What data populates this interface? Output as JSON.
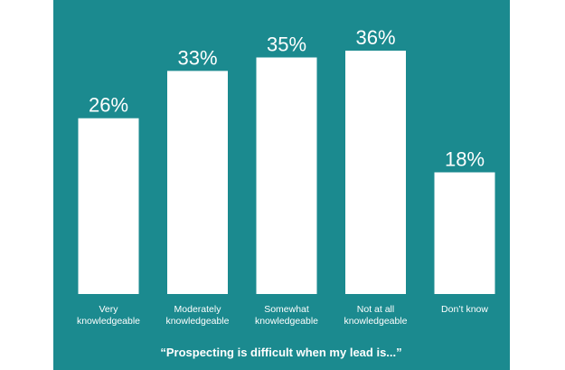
{
  "chart_data": {
    "type": "bar",
    "title": "",
    "xlabel": "“Prospecting is difficult when my lead is...”",
    "ylabel": "",
    "categories": [
      [
        "Very",
        "knowledgeable"
      ],
      [
        "Moderately",
        "knowledgeable"
      ],
      [
        "Somewhat",
        "knowledgeable"
      ],
      [
        "Not at all",
        "knowledgeable"
      ],
      [
        "Don’t know"
      ]
    ],
    "values": [
      26,
      33,
      35,
      36,
      18
    ],
    "value_labels": [
      "26%",
      "33%",
      "35%",
      "36%",
      "18%"
    ],
    "ylim": [
      0,
      36
    ],
    "grid": false,
    "legend": "none",
    "colors": {
      "background": "#1b8a8f",
      "bars": "#ffffff",
      "text": "#ffffff"
    }
  }
}
